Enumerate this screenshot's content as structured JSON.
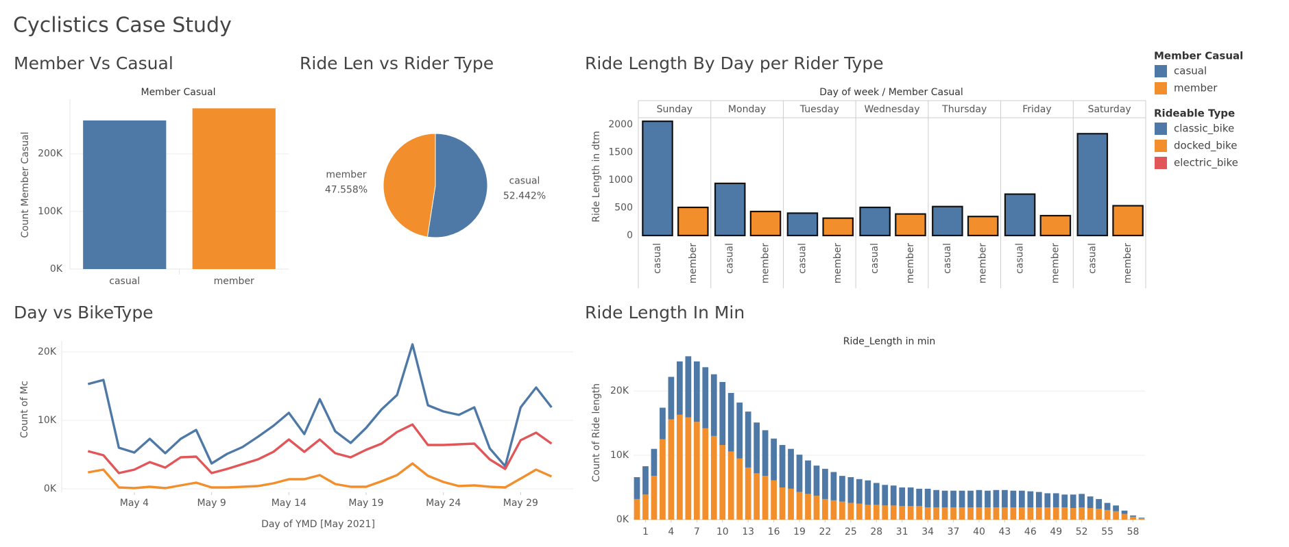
{
  "title": "Cyclistics Case Study",
  "chart_data": [
    {
      "type": "bar",
      "title": "Member Vs Casual",
      "header": "Member Casual",
      "y_label": "Count Member Casual",
      "categories": [
        "casual",
        "member"
      ],
      "values": [
        258000,
        279000
      ],
      "colors": [
        "#4e79a7",
        "#f28e2b"
      ],
      "ylim": [
        0,
        290000
      ],
      "yticks": [
        {
          "value": 0,
          "label": "0K"
        },
        {
          "value": 100000,
          "label": "100K"
        },
        {
          "value": 200000,
          "label": "200K"
        }
      ],
      "grid": true
    },
    {
      "type": "pie",
      "title": "Ride Len vs Rider Type",
      "categories": [
        "casual",
        "member"
      ],
      "values": [
        52.442,
        47.558
      ],
      "value_labels": [
        "52.442%",
        "47.558%"
      ],
      "colors": [
        "#4e79a7",
        "#f28e2b"
      ]
    },
    {
      "type": "grouped_bar",
      "title": "Ride Length By Day per Rider Type",
      "header": "Day of week / Member Casual",
      "y_label": "Ride Length in dtm",
      "categories": [
        "Sunday",
        "Monday",
        "Tuesday",
        "Wednesday",
        "Thursday",
        "Friday",
        "Saturday"
      ],
      "series": [
        {
          "name": "casual",
          "color": "#4e79a7",
          "values": [
            2060,
            940,
            403,
            507,
            522,
            746,
            1836
          ]
        },
        {
          "name": "member",
          "color": "#f28e2b",
          "values": [
            507,
            433,
            313,
            388,
            343,
            358,
            537
          ]
        }
      ],
      "ylim": [
        0,
        2130
      ],
      "yticks": [
        0,
        500,
        1000,
        1500,
        2000
      ]
    },
    {
      "type": "line",
      "title": "Day vs BikeType",
      "x_label": "Day of YMD [May 2021]",
      "y_label": "Count of Mc",
      "legend_title": "Rideable Type",
      "x": [
        1,
        2,
        3,
        4,
        5,
        6,
        7,
        8,
        9,
        10,
        11,
        12,
        13,
        14,
        15,
        16,
        17,
        18,
        19,
        20,
        21,
        22,
        23,
        24,
        25,
        26,
        27,
        28,
        29,
        30,
        31
      ],
      "xlim": [
        -0.7,
        32.4
      ],
      "xticks": [
        {
          "value": 4,
          "label": "May 4"
        },
        {
          "value": 9,
          "label": "May 9"
        },
        {
          "value": 14,
          "label": "May 14"
        },
        {
          "value": 19,
          "label": "May 19"
        },
        {
          "value": 24,
          "label": "May 24"
        },
        {
          "value": 29,
          "label": "May 29"
        }
      ],
      "series": [
        {
          "name": "classic_bike",
          "color": "#4e79a7",
          "values": [
            15300,
            15900,
            6000,
            5300,
            7300,
            5200,
            7300,
            8600,
            3700,
            5100,
            6100,
            7600,
            9200,
            11100,
            8000,
            13100,
            8400,
            6700,
            8900,
            11600,
            13700,
            21100,
            12200,
            11300,
            10800,
            11900,
            5900,
            3300,
            11900,
            14800,
            11900
          ]
        },
        {
          "name": "docked_bike",
          "color": "#f28e2b",
          "values": [
            2400,
            2800,
            200,
            100,
            300,
            100,
            500,
            900,
            200,
            200,
            300,
            400,
            800,
            1400,
            1400,
            2000,
            700,
            300,
            300,
            1100,
            2000,
            3700,
            1900,
            1000,
            400,
            500,
            300,
            200,
            1500,
            2800,
            1800
          ]
        },
        {
          "name": "electric_bike",
          "color": "#e15759",
          "values": [
            5500,
            4900,
            2300,
            2800,
            3900,
            3100,
            4600,
            4700,
            2300,
            2900,
            3600,
            4300,
            5400,
            7200,
            5400,
            7200,
            5200,
            4600,
            5700,
            6600,
            8300,
            9400,
            6400,
            6400,
            6500,
            6600,
            4300,
            2900,
            7100,
            8200,
            6600
          ]
        }
      ],
      "ylim": [
        -500,
        22000
      ],
      "yticks": [
        {
          "value": 0,
          "label": "0K"
        },
        {
          "value": 10000,
          "label": "10K"
        },
        {
          "value": 20000,
          "label": "20K"
        }
      ],
      "grid": true
    },
    {
      "type": "stacked_bar",
      "title": "Ride Length In Min",
      "header": "Ride_Length in min",
      "y_label": "Count of Ride length",
      "legend_title": "Member Casual",
      "x": [
        0,
        1,
        2,
        3,
        4,
        5,
        6,
        7,
        8,
        9,
        10,
        11,
        12,
        13,
        14,
        15,
        16,
        17,
        18,
        19,
        20,
        21,
        22,
        23,
        24,
        25,
        26,
        27,
        28,
        29,
        30,
        31,
        32,
        33,
        34,
        35,
        36,
        37,
        38,
        39,
        40,
        41,
        42,
        43,
        44,
        45,
        46,
        47,
        48,
        49,
        50,
        51,
        52,
        53,
        54,
        55,
        56,
        57,
        58,
        59
      ],
      "xlim": [
        -0.4,
        59.4
      ],
      "xticks": [
        1,
        4,
        7,
        10,
        13,
        16,
        19,
        22,
        25,
        28,
        31,
        34,
        37,
        40,
        43,
        46,
        49,
        52,
        55,
        58
      ],
      "series": [
        {
          "name": "casual",
          "color": "#4e79a7",
          "values": [
            3400,
            4400,
            4200,
            4900,
            6600,
            8300,
            9500,
            9400,
            9500,
            9600,
            9800,
            9100,
            8700,
            8700,
            7900,
            7100,
            6500,
            6600,
            6200,
            5800,
            5200,
            4700,
            4700,
            4400,
            4000,
            4000,
            3800,
            3800,
            3400,
            3200,
            3100,
            2900,
            2900,
            2700,
            2900,
            2700,
            2600,
            2600,
            2600,
            2600,
            2700,
            2600,
            2700,
            2700,
            2600,
            2600,
            2500,
            2400,
            2200,
            2200,
            2000,
            2100,
            2100,
            1800,
            1500,
            1100,
            900,
            500,
            200,
            100
          ]
        },
        {
          "name": "member",
          "color": "#f28e2b",
          "values": [
            3200,
            3900,
            6800,
            12500,
            15600,
            16300,
            15900,
            15200,
            14200,
            13000,
            11600,
            10600,
            9500,
            8100,
            7200,
            6800,
            6100,
            5000,
            4800,
            4300,
            4000,
            3700,
            3200,
            3000,
            2800,
            2600,
            2500,
            2300,
            2300,
            2200,
            2200,
            2100,
            2100,
            2100,
            1900,
            1900,
            1900,
            1900,
            1900,
            1900,
            1900,
            1900,
            1900,
            1900,
            1900,
            1900,
            1900,
            1900,
            1900,
            1900,
            1900,
            1800,
            1900,
            1800,
            1700,
            1500,
            1300,
            900,
            450,
            200
          ]
        }
      ],
      "ylim": [
        0,
        26400
      ],
      "yticks": [
        {
          "value": 0,
          "label": "0K"
        },
        {
          "value": 10000,
          "label": "10K"
        },
        {
          "value": 20000,
          "label": "20K"
        }
      ],
      "grid": true
    }
  ]
}
